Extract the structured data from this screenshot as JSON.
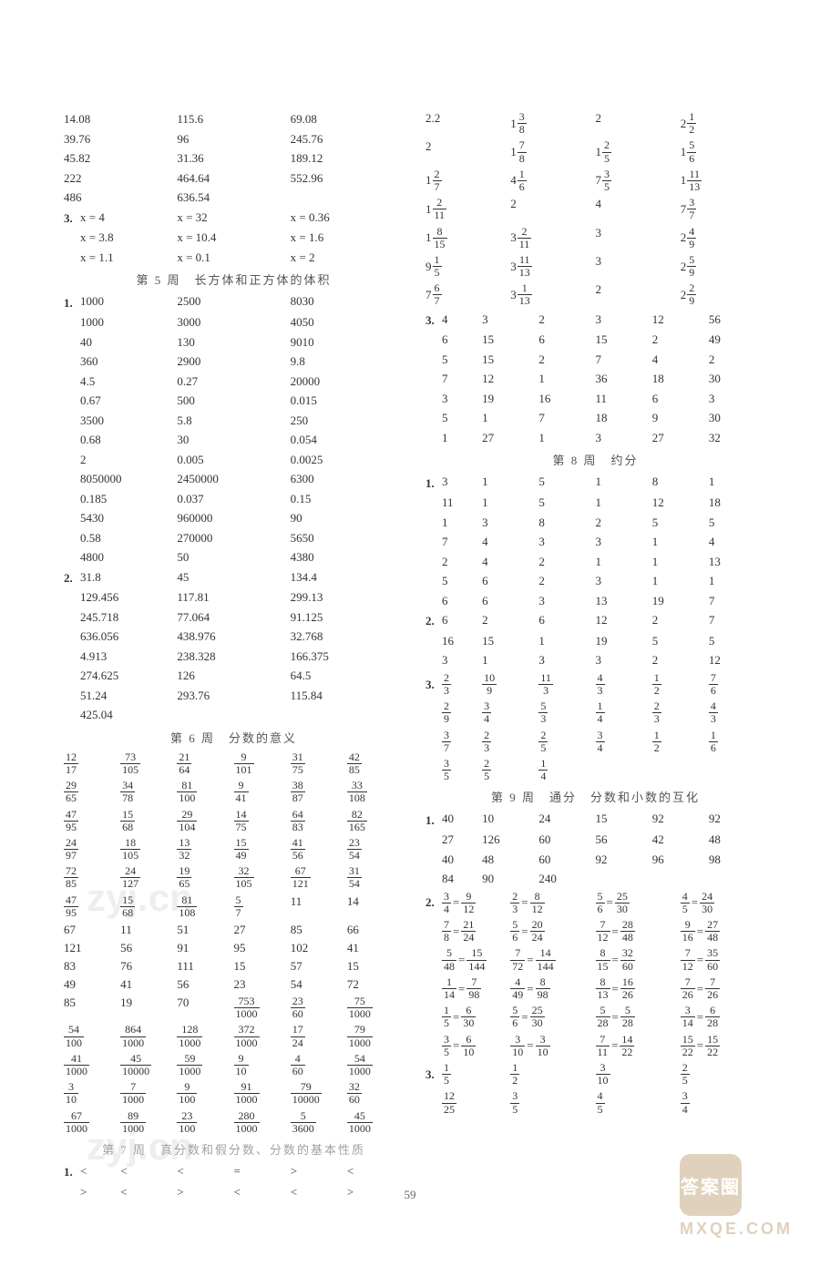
{
  "pageNumber": "59",
  "watermarkText": "zyj.cn",
  "watermarkStamp": "答案圈",
  "watermarkUrl": "MXQE.COM",
  "left": {
    "topGrid": [
      [
        "14.08",
        "115.6",
        "69.08"
      ],
      [
        "39.76",
        "96",
        "245.76"
      ],
      [
        "45.82",
        "31.36",
        "189.12"
      ],
      [
        "222",
        "464.64",
        "552.96"
      ],
      [
        "486",
        "636.54",
        ""
      ]
    ],
    "eqGrid": [
      [
        "x = 4",
        "x = 32",
        "x = 0.36"
      ],
      [
        "x = 3.8",
        "x = 10.4",
        "x = 1.6"
      ],
      [
        "x = 1.1",
        "x = 0.1",
        "x = 2"
      ]
    ],
    "eqLabel": "3.",
    "week5Title": "第 5 周　长方体和正方体的体积",
    "week5Label1": "1.",
    "week5Block1": [
      [
        "1000",
        "2500",
        "8030"
      ],
      [
        "1000",
        "3000",
        "4050"
      ],
      [
        "40",
        "130",
        "9010"
      ],
      [
        "360",
        "2900",
        "9.8"
      ],
      [
        "4.5",
        "0.27",
        "20000"
      ],
      [
        "0.67",
        "500",
        "0.015"
      ],
      [
        "3500",
        "5.8",
        "250"
      ],
      [
        "0.68",
        "30",
        "0.054"
      ],
      [
        "2",
        "0.005",
        "0.0025"
      ],
      [
        "8050000",
        "2450000",
        "6300"
      ],
      [
        "0.185",
        "0.037",
        "0.15"
      ],
      [
        "5430",
        "960000",
        "90"
      ],
      [
        "0.58",
        "270000",
        "5650"
      ],
      [
        "4800",
        "50",
        "4380"
      ]
    ],
    "week5Label2": "2.",
    "week5Block2": [
      [
        "31.8",
        "45",
        "134.4"
      ],
      [
        "129.456",
        "117.81",
        "299.13"
      ],
      [
        "245.718",
        "77.064",
        "91.125"
      ],
      [
        "636.056",
        "438.976",
        "32.768"
      ],
      [
        "4.913",
        "238.328",
        "166.375"
      ],
      [
        "274.625",
        "126",
        "64.5"
      ],
      [
        "51.24",
        "293.76",
        "115.84"
      ],
      [
        "425.04",
        "",
        ""
      ]
    ],
    "week6Title": "第 6 周　分数的意义",
    "fracGrid": [
      [
        [
          "12",
          "17"
        ],
        [
          "73",
          "105"
        ],
        [
          "21",
          "64"
        ],
        [
          "9",
          "101"
        ],
        [
          "31",
          "75"
        ],
        [
          "42",
          "85"
        ]
      ],
      [
        [
          "29",
          "65"
        ],
        [
          "34",
          "78"
        ],
        [
          "81",
          "100"
        ],
        [
          "9",
          "41"
        ],
        [
          "38",
          "87"
        ],
        [
          "33",
          "108"
        ]
      ],
      [
        [
          "47",
          "95"
        ],
        [
          "15",
          "68"
        ],
        [
          "29",
          "104"
        ],
        [
          "14",
          "75"
        ],
        [
          "64",
          "83"
        ],
        [
          "82",
          "165"
        ]
      ],
      [
        [
          "24",
          "97"
        ],
        [
          "18",
          "105"
        ],
        [
          "13",
          "32"
        ],
        [
          "15",
          "49"
        ],
        [
          "41",
          "56"
        ],
        [
          "23",
          "54"
        ]
      ],
      [
        [
          "72",
          "85"
        ],
        [
          "24",
          "127"
        ],
        [
          "19",
          "65"
        ],
        [
          "32",
          "105"
        ],
        [
          "67",
          "121"
        ],
        [
          "31",
          "54"
        ]
      ],
      [
        [
          "47",
          "95"
        ],
        [
          "15",
          "68"
        ],
        [
          "81",
          "108"
        ],
        [
          "5",
          "7"
        ],
        "11",
        "14"
      ],
      [
        "67",
        "11",
        "51",
        "27",
        "85",
        "66"
      ],
      [
        "121",
        "56",
        "91",
        "95",
        "102",
        "41"
      ],
      [
        "83",
        "76",
        "111",
        "15",
        "57",
        "15"
      ],
      [
        "49",
        "41",
        "56",
        "23",
        "54",
        "72"
      ],
      [
        "85",
        "19",
        "70",
        [
          "753",
          "1000"
        ],
        [
          "23",
          "60"
        ],
        [
          "75",
          "1000"
        ]
      ],
      [
        [
          "54",
          "100"
        ],
        [
          "864",
          "1000"
        ],
        [
          "128",
          "1000"
        ],
        [
          "372",
          "1000"
        ],
        [
          "17",
          "24"
        ],
        [
          "79",
          "1000"
        ]
      ],
      [
        [
          "41",
          "1000"
        ],
        [
          "45",
          "10000"
        ],
        [
          "59",
          "1000"
        ],
        [
          "9",
          "10"
        ],
        [
          "4",
          "60"
        ],
        [
          "54",
          "1000"
        ]
      ],
      [
        [
          "3",
          "10"
        ],
        [
          "7",
          "1000"
        ],
        [
          "9",
          "100"
        ],
        [
          "91",
          "1000"
        ],
        [
          "79",
          "10000"
        ],
        [
          "32",
          "60"
        ]
      ],
      [
        [
          "67",
          "1000"
        ],
        [
          "89",
          "1000"
        ],
        [
          "23",
          "100"
        ],
        [
          "280",
          "1000"
        ],
        [
          "5",
          "3600"
        ],
        [
          "45",
          "1000"
        ]
      ]
    ],
    "week7Title": "第 7 周　真分数和假分数、分数的基本性质",
    "week7Label": "1.",
    "week7Grid": [
      [
        "<",
        "<",
        "<",
        "=",
        ">",
        "<"
      ],
      [
        ">",
        "<",
        ">",
        "<",
        "<",
        ">"
      ]
    ]
  },
  "right": {
    "mixedGridLabel": "",
    "mixedGrid": [
      [
        "2.2",
        [
          "1",
          "3",
          "8"
        ],
        "2",
        [
          "2",
          "1",
          "2"
        ]
      ],
      [
        "2",
        [
          "1",
          "7",
          "8"
        ],
        [
          "1",
          "2",
          "5"
        ],
        [
          "1",
          "5",
          "6"
        ]
      ],
      [
        [
          "1",
          "2",
          "7"
        ],
        [
          "4",
          "1",
          "6"
        ],
        [
          "7",
          "3",
          "5"
        ],
        [
          "1",
          "11",
          "13"
        ]
      ],
      [
        [
          "1",
          "2",
          "11"
        ],
        "2",
        "4",
        [
          "7",
          "3",
          "7"
        ]
      ],
      [
        [
          "1",
          "8",
          "15"
        ],
        [
          "3",
          "2",
          "11"
        ],
        "3",
        [
          "2",
          "4",
          "9"
        ]
      ],
      [
        [
          "9",
          "1",
          "5"
        ],
        [
          "3",
          "11",
          "13"
        ],
        "3",
        [
          "2",
          "5",
          "9"
        ]
      ],
      [
        [
          "7",
          "6",
          "7"
        ],
        [
          "3",
          "1",
          "13"
        ],
        "2",
        [
          "2",
          "2",
          "9"
        ]
      ]
    ],
    "block3Label": "3.",
    "block3": [
      [
        "4",
        "3",
        "2",
        "3",
        "12",
        "56"
      ],
      [
        "6",
        "15",
        "6",
        "15",
        "2",
        "49"
      ],
      [
        "5",
        "15",
        "2",
        "7",
        "4",
        "2"
      ],
      [
        "7",
        "12",
        "1",
        "36",
        "18",
        "30"
      ],
      [
        "3",
        "19",
        "16",
        "11",
        "6",
        "3"
      ],
      [
        "5",
        "1",
        "7",
        "18",
        "9",
        "30"
      ],
      [
        "1",
        "27",
        "1",
        "3",
        "27",
        "32"
      ]
    ],
    "week8Title": "第 8 周　约分",
    "week8Label1": "1.",
    "week8Block1": [
      [
        "3",
        "1",
        "5",
        "1",
        "8",
        "1"
      ],
      [
        "11",
        "1",
        "5",
        "1",
        "12",
        "18"
      ],
      [
        "1",
        "3",
        "8",
        "2",
        "5",
        "5"
      ],
      [
        "7",
        "4",
        "3",
        "3",
        "1",
        "4"
      ],
      [
        "2",
        "4",
        "2",
        "1",
        "1",
        "13"
      ],
      [
        "5",
        "6",
        "2",
        "3",
        "1",
        "1"
      ],
      [
        "6",
        "6",
        "3",
        "13",
        "19",
        "7"
      ]
    ],
    "week8Label2": "2.",
    "week8Block2": [
      [
        "6",
        "2",
        "6",
        "12",
        "2",
        "7"
      ],
      [
        "16",
        "15",
        "1",
        "19",
        "5",
        "5"
      ],
      [
        "3",
        "1",
        "3",
        "3",
        "2",
        "12"
      ]
    ],
    "week8Label3": "3.",
    "week8Block3": [
      [
        [
          "2",
          "3"
        ],
        [
          "10",
          "9"
        ],
        [
          "11",
          "3"
        ],
        [
          "4",
          "3"
        ],
        [
          "1",
          "2"
        ],
        [
          "7",
          "6"
        ]
      ],
      [
        [
          "2",
          "9"
        ],
        [
          "3",
          "4"
        ],
        [
          "5",
          "3"
        ],
        [
          "1",
          "4"
        ],
        [
          "2",
          "3"
        ],
        [
          "4",
          "3"
        ]
      ],
      [
        [
          "3",
          "7"
        ],
        [
          "2",
          "3"
        ],
        [
          "2",
          "5"
        ],
        [
          "3",
          "4"
        ],
        [
          "1",
          "2"
        ],
        [
          "1",
          "6"
        ]
      ],
      [
        [
          "3",
          "5"
        ],
        [
          "2",
          "5"
        ],
        [
          "1",
          "4"
        ],
        "",
        "",
        ""
      ]
    ],
    "week9Title": "第 9 周　通分　分数和小数的互化",
    "week9Label1": "1.",
    "week9Block1": [
      [
        "40",
        "10",
        "24",
        "15",
        "92",
        "92"
      ],
      [
        "27",
        "126",
        "60",
        "56",
        "42",
        "48"
      ],
      [
        "40",
        "48",
        "60",
        "92",
        "96",
        "98"
      ],
      [
        "84",
        "90",
        "240",
        "",
        "",
        ""
      ]
    ],
    "week9Label2": "2.",
    "week9Block2": [
      [
        [
          [
            "3",
            "4"
          ],
          [
            "9",
            "12"
          ]
        ],
        [
          [
            "2",
            "3"
          ],
          [
            "8",
            "12"
          ]
        ],
        [
          [
            "5",
            "6"
          ],
          [
            "25",
            "30"
          ]
        ],
        [
          [
            "4",
            "5"
          ],
          [
            "24",
            "30"
          ]
        ]
      ],
      [
        [
          [
            "7",
            "8"
          ],
          [
            "21",
            "24"
          ]
        ],
        [
          [
            "5",
            "6"
          ],
          [
            "20",
            "24"
          ]
        ],
        [
          [
            "7",
            "12"
          ],
          [
            "28",
            "48"
          ]
        ],
        [
          [
            "9",
            "16"
          ],
          [
            "27",
            "48"
          ]
        ]
      ],
      [
        [
          [
            "5",
            "48"
          ],
          [
            "15",
            "144"
          ]
        ],
        [
          [
            "7",
            "72"
          ],
          [
            "14",
            "144"
          ]
        ],
        [
          [
            "8",
            "15"
          ],
          [
            "32",
            "60"
          ]
        ],
        [
          [
            "7",
            "12"
          ],
          [
            "35",
            "60"
          ]
        ]
      ],
      [
        [
          [
            "1",
            "14"
          ],
          [
            "7",
            "98"
          ]
        ],
        [
          [
            "4",
            "49"
          ],
          [
            "8",
            "98"
          ]
        ],
        [
          [
            "8",
            "13"
          ],
          [
            "16",
            "26"
          ]
        ],
        [
          [
            "7",
            "26"
          ],
          [
            "7",
            "26"
          ]
        ]
      ],
      [
        [
          [
            "1",
            "5"
          ],
          [
            "6",
            "30"
          ]
        ],
        [
          [
            "5",
            "6"
          ],
          [
            "25",
            "30"
          ]
        ],
        [
          [
            "5",
            "28"
          ],
          [
            "5",
            "28"
          ]
        ],
        [
          [
            "3",
            "14"
          ],
          [
            "6",
            "28"
          ]
        ]
      ],
      [
        [
          [
            "3",
            "5"
          ],
          [
            "6",
            "10"
          ]
        ],
        [
          [
            "3",
            "10"
          ],
          [
            "3",
            "10"
          ]
        ],
        [
          [
            "7",
            "11"
          ],
          [
            "14",
            "22"
          ]
        ],
        [
          [
            "15",
            "22"
          ],
          [
            "15",
            "22"
          ]
        ]
      ]
    ],
    "week9Label3": "3.",
    "week9Block3": [
      [
        [
          "1",
          "5"
        ],
        [
          "1",
          "2"
        ],
        [
          "3",
          "10"
        ],
        [
          "2",
          "5"
        ]
      ],
      [
        [
          "12",
          "25"
        ],
        [
          "3",
          "5"
        ],
        [
          "4",
          "5"
        ],
        [
          "3",
          "4"
        ]
      ]
    ]
  }
}
